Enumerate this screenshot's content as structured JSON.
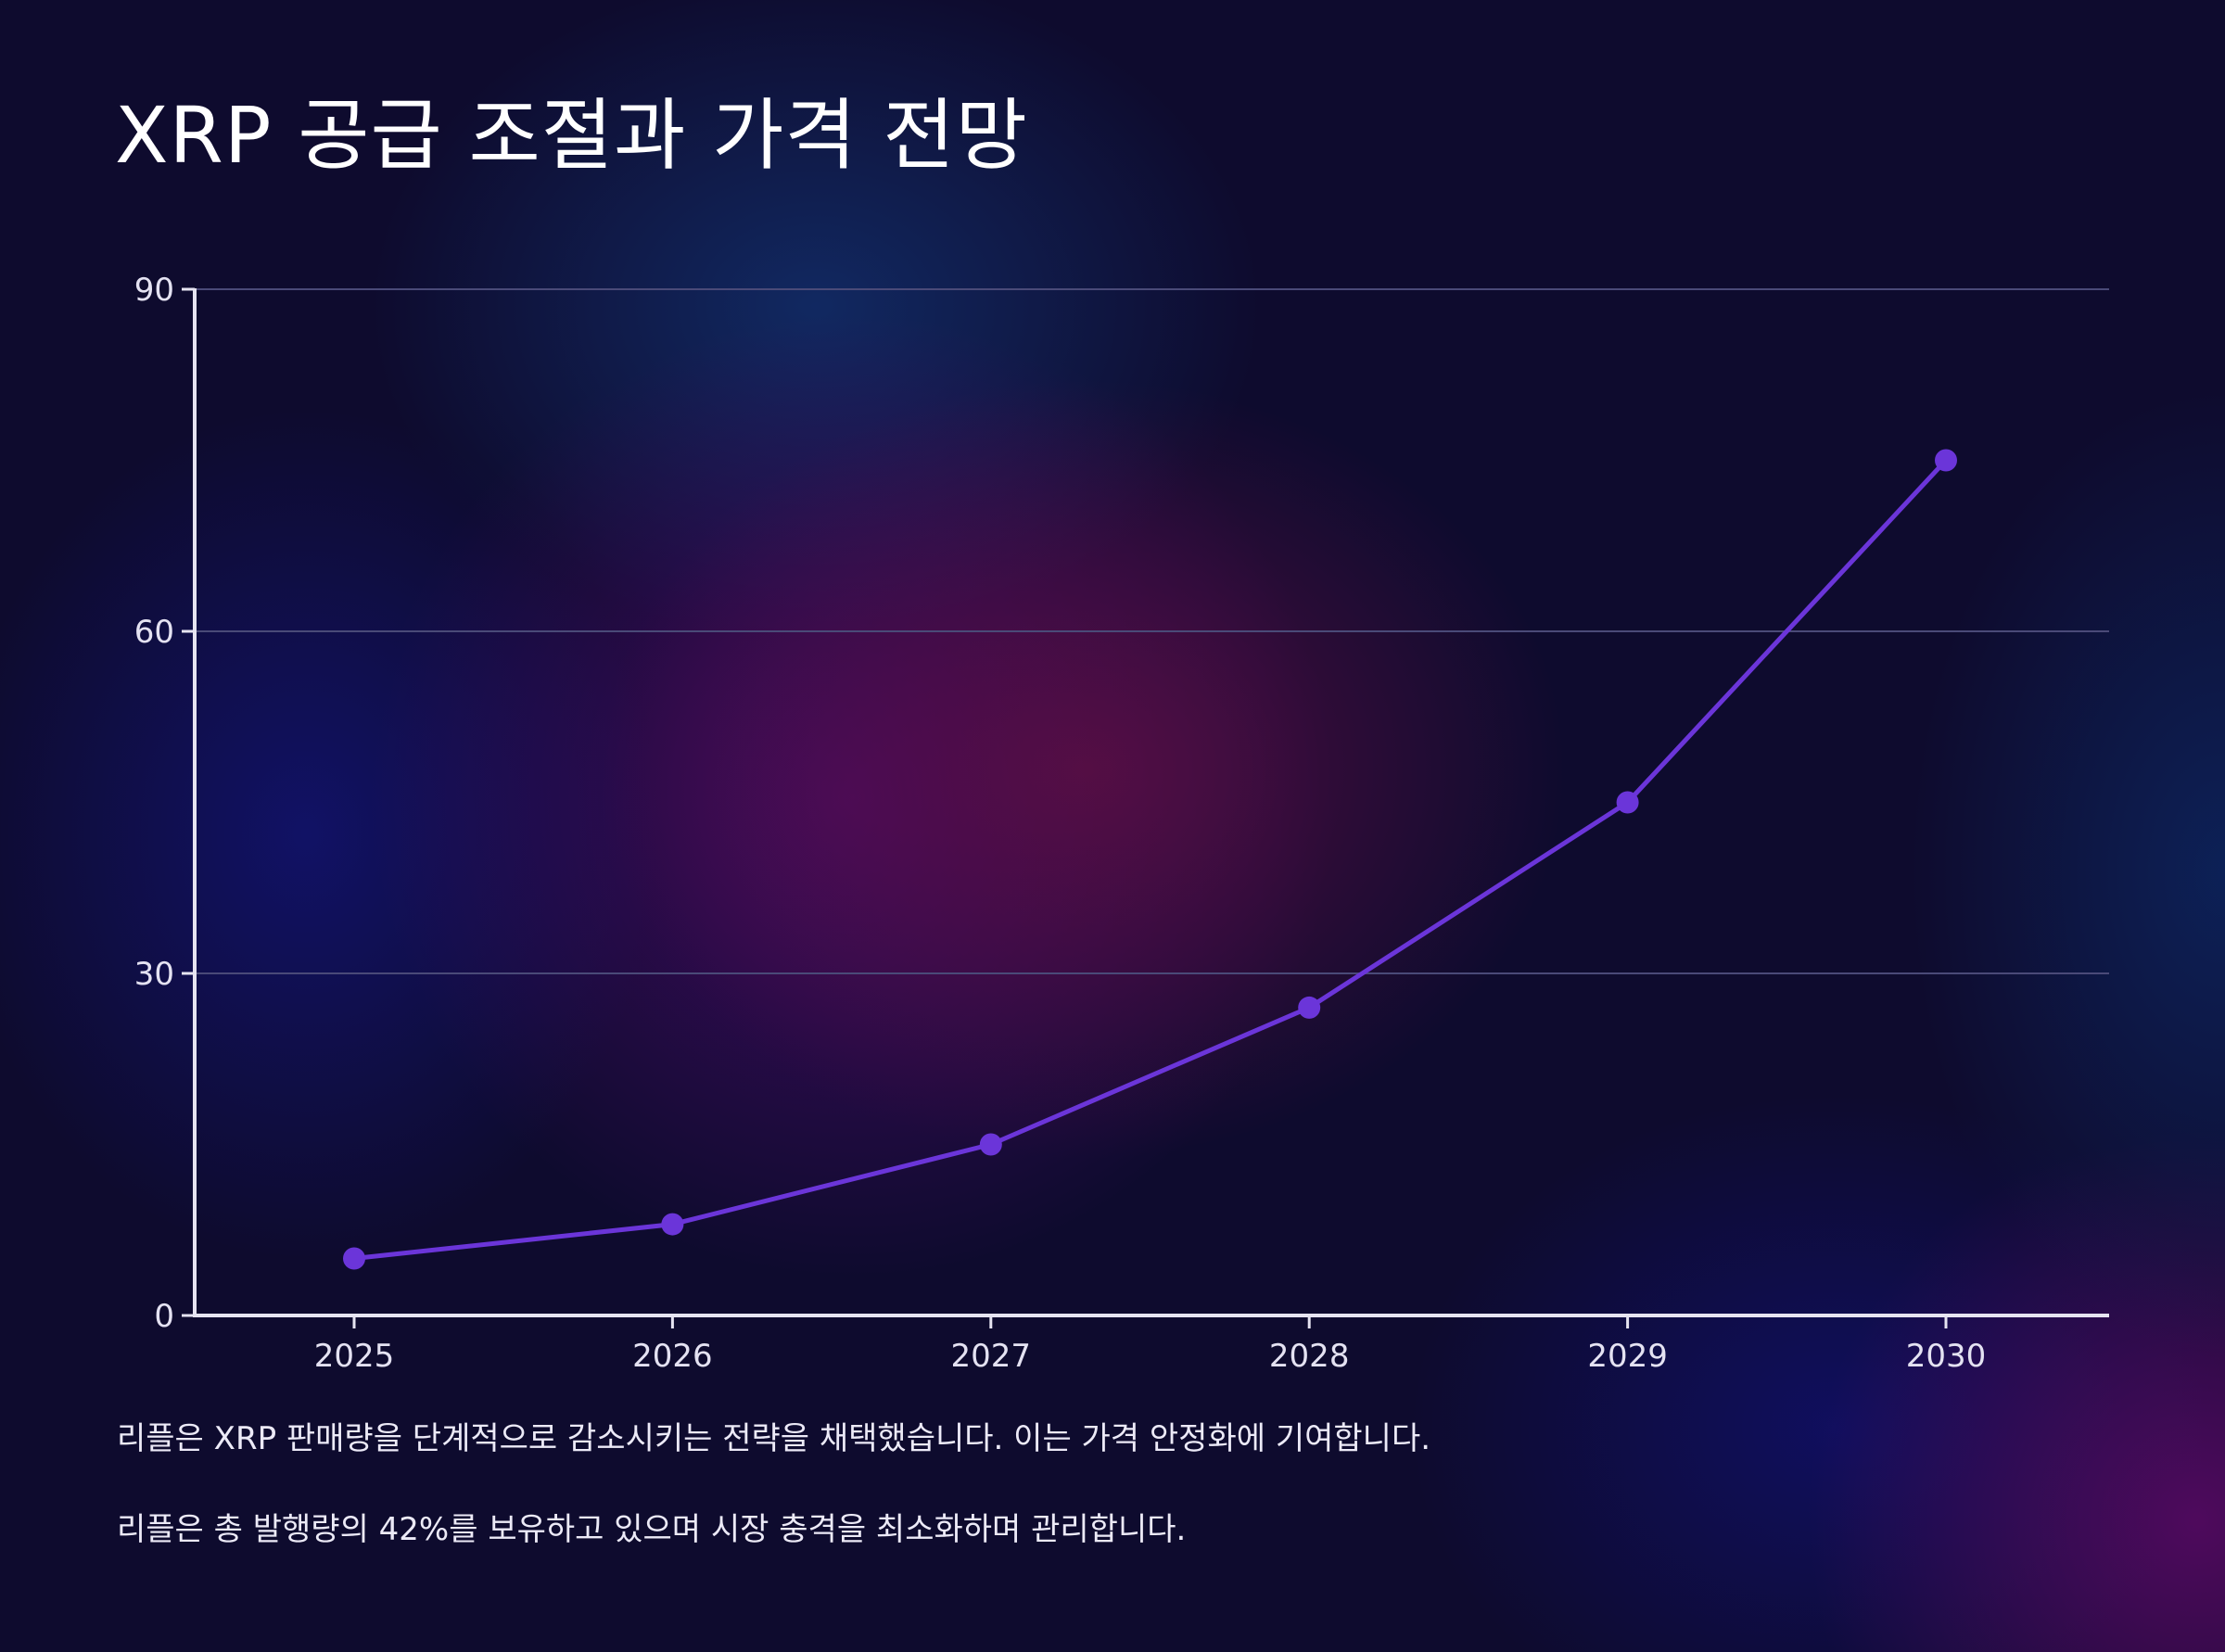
{
  "title": "XRP 공급 조절과 가격 전망",
  "chart_data": {
    "type": "line",
    "title": "XRP 공급 조절과 가격 전망",
    "x": [
      "2025",
      "2026",
      "2027",
      "2028",
      "2029",
      "2030"
    ],
    "series": [
      {
        "values": [
          5,
          8,
          15,
          27,
          45,
          75
        ]
      }
    ],
    "yticks": [
      0,
      30,
      60,
      90
    ],
    "ylim": [
      0,
      90
    ],
    "xlabel": "",
    "ylabel": "",
    "grid": true,
    "legend": "none",
    "colors": {
      "line": "#6b35d9",
      "marker": "#6b35d9",
      "axis": "#e6e4f1",
      "grid": "#4a4a78"
    }
  },
  "notes": [
    "리플은 XRP 판매량을 단계적으로 감소시키는 전략을 채택했습니다. 이는 가격 안정화에 기여합니다.",
    "리플은 총 발행량의 42%를 보유하고 있으며 시장 충격을 최소화하며 관리합니다."
  ]
}
